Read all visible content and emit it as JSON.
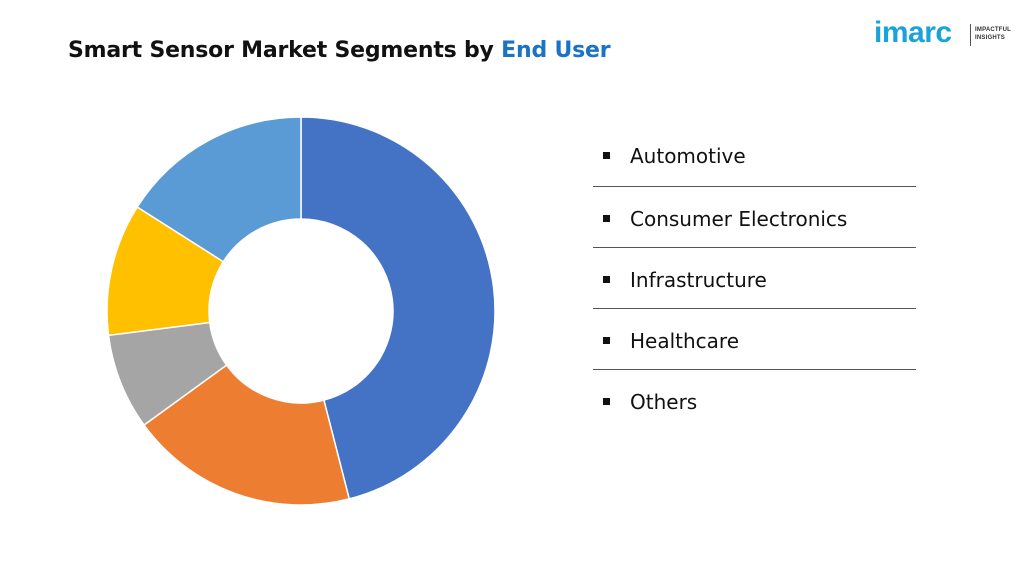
{
  "title": {
    "main": "Smart Sensor Market Segments by",
    "accent": "End User",
    "accent_color": "#1a73c4"
  },
  "logo": {
    "word": "imarc",
    "tagline_line1": "IMPACTFUL",
    "tagline_line2": "INSIGHTS",
    "color": "#1aa3d8"
  },
  "chart_data": {
    "type": "pie",
    "donut": true,
    "title": "Smart Sensor Market Segments by End User",
    "categories": [
      "Automotive",
      "Consumer Electronics",
      "Infrastructure",
      "Healthcare",
      "Others"
    ],
    "series": [
      {
        "values": [
          46,
          19,
          8,
          11,
          16
        ]
      }
    ],
    "colors": [
      "#4472c4",
      "#ed7d31",
      "#a5a5a5",
      "#ffc000",
      "#5b9bd5"
    ],
    "start_angle_deg": 0,
    "direction": "clockwise",
    "legend": "right",
    "legend_items": [
      "Automotive",
      "Consumer Electronics",
      "Infrastructure",
      "Healthcare",
      "Others"
    ]
  }
}
